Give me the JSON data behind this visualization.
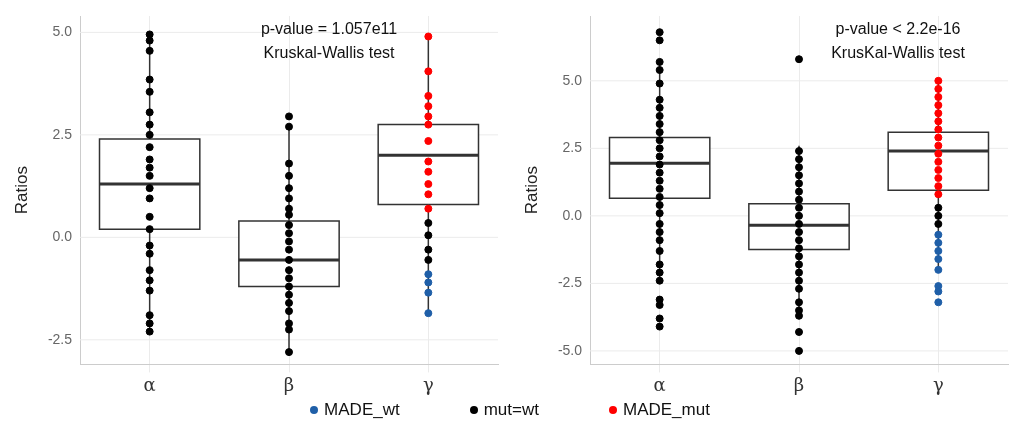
{
  "chart_data": [
    {
      "type": "box",
      "categories": [
        "α",
        "β",
        "γ"
      ],
      "ylabel": "Ratios",
      "ylim": [
        -3.1,
        5.4
      ],
      "yticks": [
        {
          "value": -2.5,
          "label": "-2.5"
        },
        {
          "value": 0,
          "label": "0.0"
        },
        {
          "value": 2.5,
          "label": "2.5"
        },
        {
          "value": 5,
          "label": "5.0"
        }
      ],
      "grid": true,
      "legend": "bottom",
      "marker": "circle",
      "annotations": [
        "p-value = 1.057e11",
        "Kruskal-Wallis test"
      ],
      "boxes": [
        {
          "low": -2.3,
          "q1": 0.2,
          "median": 1.3,
          "q3": 2.4,
          "high": 4.95
        },
        {
          "low": -2.8,
          "q1": -1.2,
          "median": -0.55,
          "q3": 0.4,
          "high": 2.7
        },
        {
          "low": -1.85,
          "q1": 0.8,
          "median": 2.0,
          "q3": 2.75,
          "high": 4.9
        }
      ],
      "series": [
        {
          "type": "scatter",
          "name": "MADE_wt",
          "color": "#1f5fa8",
          "x": [
            "γ",
            "γ",
            "γ",
            "γ"
          ],
          "values": [
            -0.9,
            -1.1,
            -1.35,
            -1.85
          ]
        },
        {
          "type": "scatter",
          "name": "mut=wt",
          "color": "#000000",
          "x": [
            "α",
            "α",
            "α",
            "α",
            "α",
            "α",
            "α",
            "α",
            "α",
            "α",
            "α",
            "α",
            "α",
            "α",
            "α",
            "α",
            "α",
            "α",
            "α",
            "α",
            "α",
            "α",
            "α",
            "α",
            "β",
            "β",
            "β",
            "β",
            "β",
            "β",
            "β",
            "β",
            "β",
            "β",
            "β",
            "β",
            "β",
            "β",
            "β",
            "β",
            "β",
            "β",
            "β",
            "β",
            "β",
            "β",
            "γ",
            "γ",
            "γ",
            "γ"
          ],
          "values": [
            4.95,
            4.8,
            4.55,
            3.85,
            3.55,
            3.05,
            2.75,
            2.5,
            2.2,
            1.9,
            1.7,
            1.5,
            1.2,
            0.95,
            0.5,
            0.2,
            -0.2,
            -0.4,
            -0.8,
            -1.05,
            -1.3,
            -1.9,
            -2.1,
            -2.3,
            2.95,
            2.7,
            1.8,
            1.5,
            1.2,
            0.95,
            0.7,
            0.55,
            0.3,
            0.1,
            -0.1,
            -0.3,
            -0.55,
            -0.8,
            -1.0,
            -1.2,
            -1.4,
            -1.6,
            -1.8,
            -2.1,
            -2.25,
            -2.8,
            0.35,
            0.05,
            -0.3,
            -0.55
          ]
        },
        {
          "type": "scatter",
          "name": "MADE_mut",
          "color": "#ff0000",
          "x": [
            "γ",
            "γ",
            "γ",
            "γ",
            "γ",
            "γ",
            "γ",
            "γ",
            "γ",
            "γ",
            "γ",
            "γ"
          ],
          "values": [
            4.9,
            4.05,
            3.45,
            3.2,
            2.95,
            2.75,
            2.35,
            1.85,
            1.6,
            1.3,
            1.05,
            0.7
          ]
        }
      ]
    },
    {
      "type": "box",
      "categories": [
        "α",
        "β",
        "γ"
      ],
      "ylabel": "Ratios",
      "ylim": [
        -5.5,
        7.4
      ],
      "yticks": [
        {
          "value": -5,
          "label": "-5.0"
        },
        -2.5,
        {
          "value": 0,
          "label": "0.0"
        },
        2.5,
        {
          "value": 5,
          "label": "5.0"
        }
      ],
      "grid": true,
      "marker": "circle",
      "annotations": [
        "p-value < 2.2e-16",
        "KrusKal-Wallis test"
      ],
      "boxes": [
        {
          "low": -2.5,
          "q1": 0.65,
          "median": 1.95,
          "q3": 2.9,
          "high": 5.6
        },
        {
          "low": -3.6,
          "q1": -1.25,
          "median": -0.35,
          "q3": 0.45,
          "high": 2.6
        },
        {
          "low": -1.9,
          "q1": 0.95,
          "median": 2.4,
          "q3": 3.1,
          "high": 4.95
        }
      ],
      "series": [
        {
          "type": "scatter",
          "color": "#1f5fa8",
          "x": [
            "γ",
            "γ",
            "γ",
            "γ",
            "γ",
            "γ",
            "γ",
            "γ"
          ],
          "values": [
            -0.7,
            -1.0,
            -1.3,
            -1.6,
            -2.0,
            -2.6,
            -2.8,
            -3.2
          ]
        },
        {
          "type": "scatter",
          "color": "#000000",
          "x": [
            "α",
            "α",
            "α",
            "α",
            "α",
            "α",
            "α",
            "α",
            "α",
            "α",
            "α",
            "α",
            "α",
            "α",
            "α",
            "α",
            "α",
            "α",
            "α",
            "α",
            "α",
            "α",
            "α",
            "α",
            "α",
            "α",
            "α",
            "α",
            "α",
            "α",
            "α",
            "β",
            "β",
            "β",
            "β",
            "β",
            "β",
            "β",
            "β",
            "β",
            "β",
            "β",
            "β",
            "β",
            "β",
            "β",
            "β",
            "β",
            "β",
            "β",
            "β",
            "β",
            "β",
            "β",
            "β",
            "γ",
            "γ",
            "γ"
          ],
          "values": [
            6.8,
            6.5,
            5.7,
            5.4,
            4.9,
            4.3,
            4.0,
            3.7,
            3.4,
            3.1,
            2.8,
            2.5,
            2.2,
            1.9,
            1.6,
            1.3,
            1.0,
            0.7,
            0.4,
            0.1,
            -0.3,
            -0.6,
            -0.9,
            -1.3,
            -1.8,
            -2.1,
            -2.4,
            -3.1,
            -3.3,
            -3.8,
            -4.1,
            5.8,
            2.4,
            2.1,
            1.8,
            1.5,
            1.2,
            0.9,
            0.6,
            0.3,
            0.0,
            -0.3,
            -0.6,
            -0.9,
            -1.2,
            -1.5,
            -1.8,
            -2.1,
            -2.4,
            -2.7,
            -3.2,
            -3.5,
            -3.7,
            -4.3,
            -5.0,
            0.3,
            0.0,
            -0.3
          ]
        },
        {
          "type": "scatter",
          "color": "#ff0000",
          "x": [
            "γ",
            "γ",
            "γ",
            "γ",
            "γ",
            "γ",
            "γ",
            "γ",
            "γ",
            "γ",
            "γ",
            "γ",
            "γ",
            "γ",
            "γ"
          ],
          "values": [
            5.0,
            4.7,
            4.4,
            4.1,
            3.8,
            3.5,
            3.2,
            2.9,
            2.6,
            2.3,
            2.0,
            1.7,
            1.4,
            1.1,
            0.8
          ]
        }
      ]
    }
  ]
}
